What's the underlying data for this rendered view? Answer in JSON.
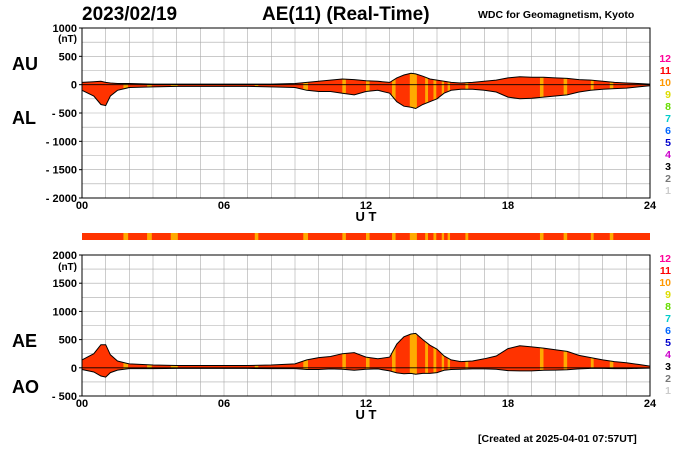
{
  "header": {
    "date": "2023/02/19",
    "title": "AE(11) (Real-Time)",
    "source": "WDC for Geomagnetism, Kyoto"
  },
  "footer": {
    "created": "[Created at 2025-04-01 07:57UT]"
  },
  "colors": {
    "fill": "#ff3300",
    "highlight": "#ffaa00",
    "line": "#000000",
    "grid": "#aaaaaa"
  },
  "station_legend": [
    {
      "label": "12",
      "color": "#ff0099"
    },
    {
      "label": "11",
      "color": "#ff0000"
    },
    {
      "label": "10",
      "color": "#ff9900"
    },
    {
      "label": "9",
      "color": "#dddd00"
    },
    {
      "label": "8",
      "color": "#66dd00"
    },
    {
      "label": "7",
      "color": "#00cccc"
    },
    {
      "label": "6",
      "color": "#0066ff"
    },
    {
      "label": "5",
      "color": "#0000cc"
    },
    {
      "label": "4",
      "color": "#cc00cc"
    },
    {
      "label": "3",
      "color": "#000000"
    },
    {
      "label": "2",
      "color": "#777777"
    },
    {
      "label": "1",
      "color": "#cccccc"
    }
  ],
  "status_bar": {
    "base_color": "#ff3300",
    "highlight_color": "#ffaa00",
    "highlight_hours": [
      [
        1.75,
        1.95
      ],
      [
        2.75,
        2.95
      ],
      [
        3.75,
        4.05
      ],
      [
        7.3,
        7.45
      ],
      [
        9.35,
        9.55
      ],
      [
        11.0,
        11.15
      ],
      [
        12.0,
        12.15
      ],
      [
        13.1,
        13.25
      ],
      [
        13.85,
        14.15
      ],
      [
        14.5,
        14.62
      ],
      [
        14.85,
        14.97
      ],
      [
        15.2,
        15.3
      ],
      [
        15.45,
        15.55
      ],
      [
        16.2,
        16.32
      ],
      [
        19.35,
        19.5
      ],
      [
        20.35,
        20.5
      ],
      [
        21.5,
        21.62
      ],
      [
        22.3,
        22.45
      ]
    ]
  },
  "chart_data": [
    {
      "type": "area",
      "name": "AU/AL",
      "xlabel": "U T",
      "upper_label": "AU",
      "lower_label": "AL",
      "unit": "(nT)",
      "xlim": [
        0,
        24
      ],
      "ylim": [
        -2000,
        1000
      ],
      "yticks": [
        1000,
        500,
        0,
        -500,
        -1000,
        -1500,
        -2000
      ],
      "ytick_labels": [
        "1000",
        "500",
        "0",
        "- 500",
        "- 1000",
        "- 1500",
        "- 2000"
      ],
      "xticks": [
        0,
        6,
        12,
        18,
        24
      ],
      "xtick_labels": [
        "00",
        "06",
        "12",
        "18",
        "24"
      ],
      "grid": true,
      "x": [
        0,
        0.5,
        0.8,
        1.0,
        1.2,
        1.5,
        2.0,
        3.0,
        4.0,
        5.0,
        6.0,
        7.0,
        8.0,
        9.0,
        9.5,
        10.0,
        10.5,
        11.0,
        11.5,
        12.0,
        12.5,
        13.0,
        13.3,
        13.6,
        13.9,
        14.1,
        14.4,
        14.7,
        15.0,
        15.3,
        15.6,
        16.0,
        16.5,
        17.0,
        17.5,
        18.0,
        18.5,
        19.0,
        19.5,
        20.0,
        20.5,
        21.0,
        21.5,
        22.0,
        22.5,
        23.0,
        23.5,
        24.0
      ],
      "series": [
        {
          "name": "AU",
          "values": [
            40,
            50,
            60,
            40,
            30,
            20,
            20,
            10,
            10,
            10,
            10,
            10,
            10,
            20,
            40,
            60,
            80,
            100,
            90,
            70,
            60,
            40,
            120,
            170,
            200,
            190,
            150,
            100,
            80,
            60,
            40,
            30,
            40,
            60,
            80,
            120,
            140,
            130,
            130,
            120,
            110,
            90,
            80,
            60,
            40,
            30,
            20,
            10
          ]
        },
        {
          "name": "AL",
          "values": [
            -100,
            -200,
            -350,
            -370,
            -200,
            -100,
            -50,
            -40,
            -30,
            -30,
            -30,
            -30,
            -40,
            -50,
            -100,
            -120,
            -120,
            -150,
            -180,
            -120,
            -100,
            -150,
            -300,
            -380,
            -400,
            -420,
            -350,
            -300,
            -250,
            -150,
            -100,
            -80,
            -80,
            -100,
            -130,
            -220,
            -250,
            -240,
            -220,
            -200,
            -180,
            -130,
            -100,
            -80,
            -70,
            -60,
            -40,
            -20
          ]
        }
      ]
    },
    {
      "type": "area",
      "name": "AE/AO",
      "xlabel": "U T",
      "upper_label": "AE",
      "lower_label": "AO",
      "unit": "(nT)",
      "xlim": [
        0,
        24
      ],
      "ylim": [
        -500,
        2000
      ],
      "yticks": [
        2000,
        1500,
        1000,
        500,
        0,
        -500
      ],
      "ytick_labels": [
        "2000",
        "1500",
        "1000",
        "500",
        "0",
        "- 500"
      ],
      "xticks": [
        0,
        6,
        12,
        18,
        24
      ],
      "xtick_labels": [
        "00",
        "06",
        "12",
        "18",
        "24"
      ],
      "grid": true,
      "x": [
        0,
        0.5,
        0.8,
        1.0,
        1.2,
        1.5,
        2.0,
        3.0,
        4.0,
        5.0,
        6.0,
        7.0,
        8.0,
        9.0,
        9.5,
        10.0,
        10.5,
        11.0,
        11.5,
        12.0,
        12.5,
        13.0,
        13.3,
        13.6,
        13.9,
        14.1,
        14.4,
        14.7,
        15.0,
        15.3,
        15.6,
        16.0,
        16.5,
        17.0,
        17.5,
        18.0,
        18.5,
        19.0,
        19.5,
        20.0,
        20.5,
        21.0,
        21.5,
        22.0,
        22.5,
        23.0,
        23.5,
        24.0
      ],
      "series": [
        {
          "name": "AE",
          "values": [
            140,
            250,
            410,
            410,
            230,
            120,
            70,
            50,
            40,
            40,
            40,
            40,
            50,
            70,
            140,
            180,
            200,
            250,
            270,
            190,
            160,
            190,
            420,
            550,
            600,
            610,
            500,
            400,
            330,
            210,
            140,
            110,
            120,
            160,
            210,
            340,
            390,
            370,
            350,
            320,
            290,
            220,
            180,
            140,
            110,
            90,
            60,
            30
          ]
        },
        {
          "name": "AO",
          "values": [
            -30,
            -75,
            -145,
            -165,
            -85,
            -40,
            -15,
            -15,
            -10,
            -10,
            -10,
            -10,
            -15,
            -15,
            -30,
            -30,
            -20,
            -25,
            -45,
            -25,
            -20,
            -55,
            -90,
            -105,
            -100,
            -115,
            -100,
            -100,
            -85,
            -45,
            -30,
            -25,
            -20,
            -20,
            -25,
            -50,
            -55,
            -55,
            -45,
            -40,
            -35,
            -20,
            -10,
            -10,
            -15,
            -15,
            -10,
            -5
          ]
        }
      ]
    }
  ]
}
